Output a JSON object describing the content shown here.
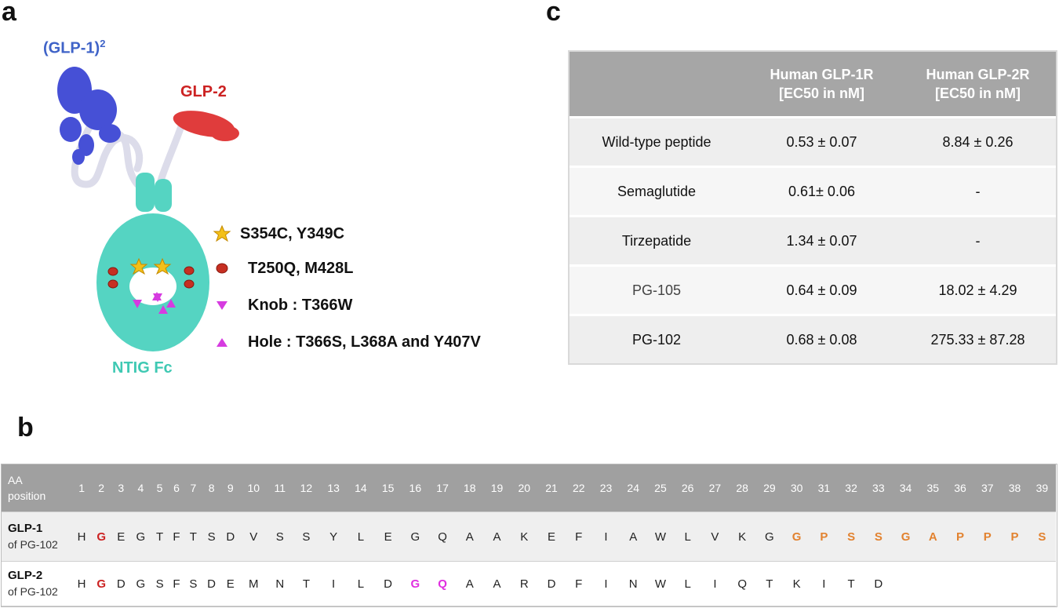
{
  "panels": {
    "a": "a",
    "b": "b",
    "c": "c"
  },
  "panel_a": {
    "labels": {
      "glp1_base": "(GLP-1)",
      "glp1_sup": "2",
      "glp2": "GLP-2",
      "fc": "NTIG Fc"
    },
    "colors": {
      "glp1": "#3f63c8",
      "glp2": "#cc2222",
      "fc": "#3fc9b3",
      "linker": "#e4e4ee",
      "star": "#f3c018",
      "dot": "#c62f22",
      "triangle": "#d63be0"
    },
    "legend": [
      {
        "icon": "star-icon",
        "text": "S354C, Y349C"
      },
      {
        "icon": "circle-icon",
        "text": "T250Q, M428L"
      },
      {
        "icon": "triangle-down-icon",
        "text": "Knob : T366W"
      },
      {
        "icon": "triangle-up-icon",
        "text": "Hole : T366S, L368A and Y407V"
      }
    ]
  },
  "panel_c": {
    "headers": [
      "",
      "Human GLP-1R\n[EC50 in nM]",
      "Human GLP-2R\n[EC50 in nM]"
    ],
    "rows": [
      [
        "Wild-type peptide",
        "0.53 ± 0.07",
        "8.84 ± 0.26"
      ],
      [
        "Semaglutide",
        "0.61± 0.06",
        "-"
      ],
      [
        "Tirzepatide",
        "1.34 ± 0.07",
        "-"
      ],
      [
        "PG-105",
        "0.64 ± 0.09",
        "18.02 ± 4.29"
      ],
      [
        "PG-102",
        "0.68 ± 0.08",
        "275.33 ± 87.28"
      ]
    ]
  },
  "panel_b": {
    "header_label": [
      "AA",
      "position"
    ],
    "positions": [
      "1",
      "2",
      "3",
      "4",
      "5",
      "6",
      "7",
      "8",
      "9",
      "10",
      "11",
      "12",
      "13",
      "14",
      "15",
      "16",
      "17",
      "18",
      "19",
      "20",
      "21",
      "22",
      "23",
      "24",
      "25",
      "26",
      "27",
      "28",
      "29",
      "30",
      "31",
      "32",
      "33",
      "34",
      "35",
      "36",
      "37",
      "38",
      "39"
    ],
    "rows": [
      {
        "label": "GLP-1",
        "sublabel": "of PG-102",
        "residues": [
          "H",
          "G",
          "E",
          "G",
          "T",
          "F",
          "T",
          "S",
          "D",
          "V",
          "S",
          "S",
          "Y",
          "L",
          "E",
          "G",
          "Q",
          "A",
          "A",
          "K",
          "E",
          "F",
          "I",
          "A",
          "W",
          "L",
          "V",
          "K",
          "G",
          "G",
          "P",
          "S",
          "S",
          "G",
          "A",
          "P",
          "P",
          "P",
          "S"
        ],
        "highlight": {
          "2": "red",
          "30": "orange",
          "31": "orange",
          "32": "orange",
          "33": "orange",
          "34": "orange",
          "35": "orange",
          "36": "orange",
          "37": "orange",
          "38": "orange",
          "39": "orange"
        }
      },
      {
        "label": "GLP-2",
        "sublabel": "of PG-102",
        "residues": [
          "H",
          "G",
          "D",
          "G",
          "S",
          "F",
          "S",
          "D",
          "E",
          "M",
          "N",
          "T",
          "I",
          "L",
          "D",
          "G",
          "Q",
          "A",
          "A",
          "R",
          "D",
          "F",
          "I",
          "N",
          "W",
          "L",
          "I",
          "Q",
          "T",
          "K",
          "I",
          "T",
          "D",
          "",
          "",
          "",
          "",
          "",
          ""
        ],
        "highlight": {
          "2": "red",
          "16": "magenta",
          "17": "magenta"
        }
      }
    ]
  }
}
